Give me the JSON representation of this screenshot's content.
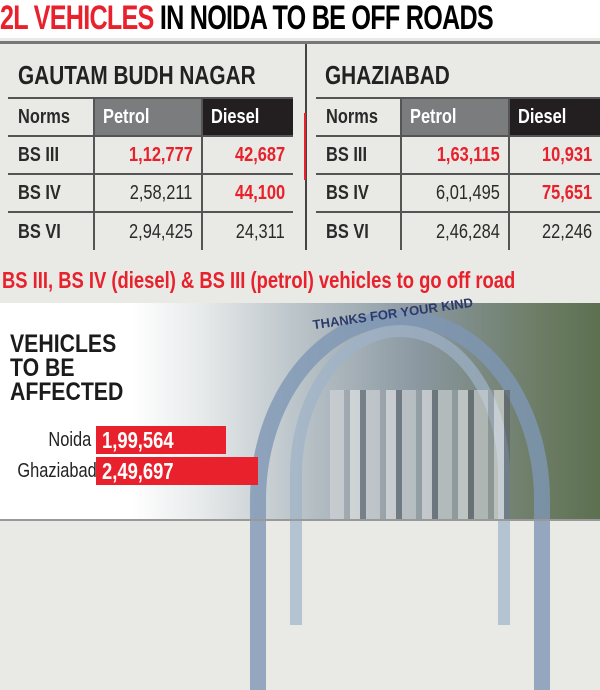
{
  "title": {
    "highlight": "2L VEHICLES",
    "rest": "IN NOIDA TO BE OFF ROADS"
  },
  "colors": {
    "accent": "#e8212c",
    "petrol_header": "#7b7c7e",
    "diesel_header": "#231f20"
  },
  "chart_data": [
    {
      "type": "table",
      "title": "GAUTAM BUDH NAGAR",
      "columns": [
        "Norms",
        "Petrol",
        "Diesel"
      ],
      "rows": [
        [
          "BS III",
          "1,12,777",
          "42,687"
        ],
        [
          "BS IV",
          "2,58,211",
          "44,100"
        ],
        [
          "BS VI",
          "2,94,425",
          "24,311"
        ]
      ],
      "highlighted": [
        [
          0,
          1
        ],
        [
          0,
          2
        ],
        [
          1,
          2
        ]
      ]
    },
    {
      "type": "table",
      "title": "GHAZIABAD",
      "columns": [
        "Norms",
        "Petrol",
        "Diesel"
      ],
      "rows": [
        [
          "BS III",
          "1,63,115",
          "10,931"
        ],
        [
          "BS IV",
          "6,01,495",
          "75,651"
        ],
        [
          "BS VI",
          "2,46,284",
          "22,246"
        ]
      ],
      "highlighted": [
        [
          0,
          1
        ],
        [
          0,
          2
        ],
        [
          1,
          2
        ]
      ]
    },
    {
      "type": "bar",
      "title": "VEHICLES TO BE AFFECTED",
      "categories": [
        "Noida",
        "Ghaziabad"
      ],
      "values": [
        199564,
        249697
      ],
      "labels": [
        "1,99,564",
        "2,49,697"
      ]
    }
  ],
  "note": "BS III, BS IV (diesel) & BS III (petrol) vehicles to go off road",
  "heading_lines": [
    "VEHICLES",
    "TO BE",
    "AFFECTED"
  ],
  "photo_sign": "THANKS FOR YOUR KIND"
}
